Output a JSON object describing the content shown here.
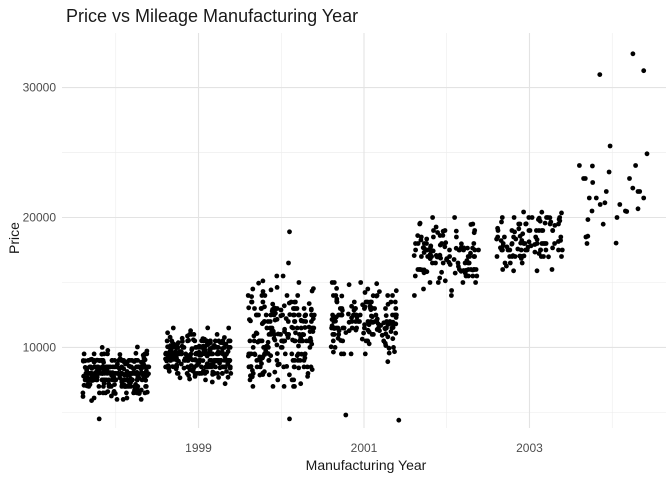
{
  "chart_data": {
    "type": "scatter",
    "title": "Price vs Mileage Manufacturing Year",
    "xlabel": "Manufacturing Year",
    "ylabel": "Price",
    "xlim": [
      1997.35,
      2004.65
    ],
    "ylim": [
      3800,
      34200
    ],
    "x_ticks": [
      1999,
      2001,
      2003
    ],
    "x_tick_labels": [
      "1999",
      "2001",
      "2003"
    ],
    "y_ticks": [
      10000,
      20000,
      30000
    ],
    "y_tick_labels": [
      "10000",
      "20000",
      "30000"
    ],
    "grid": true,
    "legend": "none",
    "point_color": "#000000",
    "jitter_width": 0.4,
    "groups": [
      {
        "year": 1998,
        "count": 300,
        "y_min": 4500,
        "y_max": 10900,
        "y_center": 8000
      },
      {
        "year": 1999,
        "count": 260,
        "y_min": 5900,
        "y_max": 12900,
        "y_center": 9300
      },
      {
        "year": 2000,
        "count": 230,
        "y_min": 4500,
        "y_max": 18900,
        "y_center": 11000
      },
      {
        "year": 2001,
        "count": 160,
        "y_min": 4400,
        "y_max": 15000,
        "y_center": 12300
      },
      {
        "year": 2002,
        "count": 120,
        "y_min": 12800,
        "y_max": 22800,
        "y_center": 17000
      },
      {
        "year": 2003,
        "count": 110,
        "y_min": 15900,
        "y_max": 24600,
        "y_center": 18500
      },
      {
        "year": 2004,
        "count": 30,
        "y_min": 17500,
        "y_max": 32600,
        "y_center": 21500
      }
    ],
    "notable_points": [
      {
        "x": 2003.85,
        "y": 31000
      },
      {
        "x": 2004.25,
        "y": 32600
      },
      {
        "x": 2004.38,
        "y": 31300
      },
      {
        "x": 2004.42,
        "y": 24900
      },
      {
        "x": 2000.1,
        "y": 18900
      },
      {
        "x": 2000.1,
        "y": 4500
      },
      {
        "x": 1997.8,
        "y": 4500
      },
      {
        "x": 2001.42,
        "y": 4400
      },
      {
        "x": 2000.78,
        "y": 4800
      }
    ]
  }
}
